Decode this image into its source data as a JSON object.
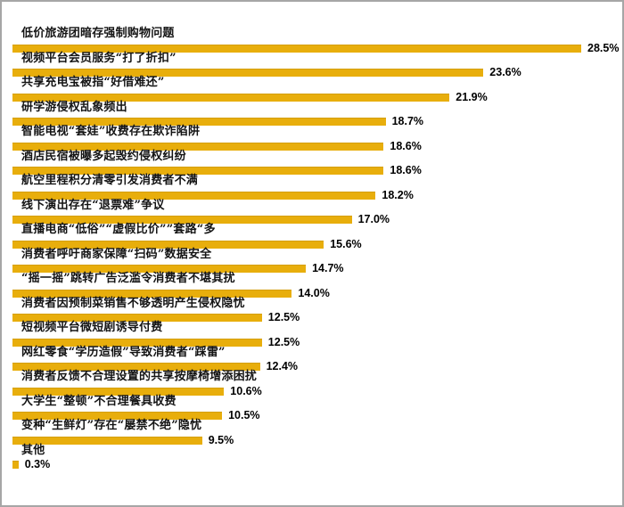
{
  "chart_data": {
    "type": "bar",
    "orientation": "horizontal",
    "title": "",
    "xlabel": "",
    "ylabel": "",
    "xlim": [
      0,
      30
    ],
    "grid": false,
    "axes_visible": false,
    "legend": "none",
    "data_labels": "outside-end",
    "bar_color": "#e8ae0c",
    "categories": [
      "低价旅游团暗存强制购物问题",
      "视频平台会员服务“打了折扣”",
      "共享充电宝被指“好借难还”",
      "研学游侵权乱象频出",
      "智能电视“套娃”收费存在欺诈陷阱",
      "酒店民宿被曝多起毁约侵权纠纷",
      "航空里程积分清零引发消费者不满",
      "线下演出存在“退票难”争议",
      "直播电商“低俗”“虚假比价””套路“多",
      "消费者呼吁商家保障“扫码”数据安全",
      "“摇一摇”跳转广告泛滥令消费者不堪其扰",
      "消费者因预制菜销售不够透明产生侵权隐忧",
      "短视频平台微短剧诱导付费",
      "网红零食“学历造假”导致消费者“踩雷”",
      "消费者反馈不合理设置的共享按摩椅增添困扰",
      "大学生“整顿”不合理餐具收费",
      "变种“生鲜灯”存在“屡禁不绝”隐忧",
      "其他"
    ],
    "values": [
      28.5,
      23.6,
      21.9,
      18.7,
      18.6,
      18.6,
      18.2,
      17.0,
      15.6,
      14.7,
      14.0,
      12.5,
      12.5,
      12.4,
      10.6,
      10.5,
      9.5,
      0.3
    ],
    "value_labels": [
      "28.5%",
      "23.6%",
      "21.9%",
      "18.7%",
      "18.6%",
      "18.6%",
      "18.2%",
      "17.0%",
      "15.6%",
      "14.7%",
      "14.0%",
      "12.5%",
      "12.5%",
      "12.4%",
      "10.6%",
      "10.5%",
      "9.5%",
      "0.3%"
    ]
  },
  "colors": {
    "background": "#ffffff",
    "frame_border": "#a6a6a6",
    "bar": "#e8ae0c",
    "text": "#141414"
  }
}
